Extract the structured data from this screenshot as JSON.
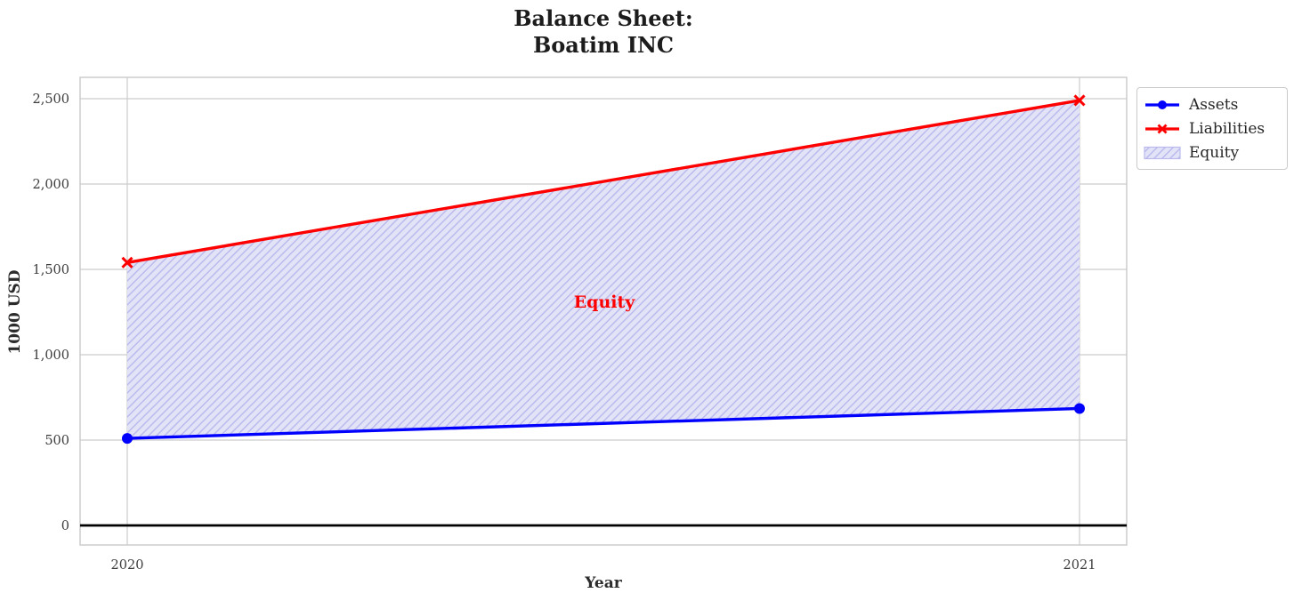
{
  "chart_data": {
    "type": "line",
    "title": "Balance Sheet:\nBoatim INC",
    "xlabel": "Year",
    "ylabel": "1000 USD",
    "categories": [
      2020,
      2021
    ],
    "series": [
      {
        "name": "Assets",
        "values": [
          510,
          685
        ],
        "color": "#0000ff",
        "marker": "circle"
      },
      {
        "name": "Liabilities",
        "values": [
          1540,
          2490
        ],
        "color": "#ff0000",
        "marker": "x"
      }
    ],
    "area": {
      "name": "Equity",
      "between": [
        "Assets",
        "Liabilities"
      ],
      "fill": "#e3e3f8",
      "hatch_color": "#b9b9ee",
      "hatch_style": "diagonal"
    },
    "annotation": {
      "text": "Equity",
      "color": "#ff0000"
    },
    "xticks": [
      "2020",
      "2021"
    ],
    "yticks": {
      "values": [
        0,
        500,
        1000,
        1500,
        2000,
        2500
      ],
      "labels": [
        "0",
        "500",
        "1,000",
        "1,500",
        "2,000",
        "2,500"
      ]
    },
    "ylim": [
      -120,
      2620
    ],
    "grid": true,
    "zero_line": true,
    "legend": {
      "position": "upper right outside"
    },
    "colors": {
      "grid": "#cccccc",
      "frame": "#c9c9c9",
      "tick": "#3c3c3c",
      "title": "#1c1c1c",
      "zero_line": "#000000"
    }
  }
}
